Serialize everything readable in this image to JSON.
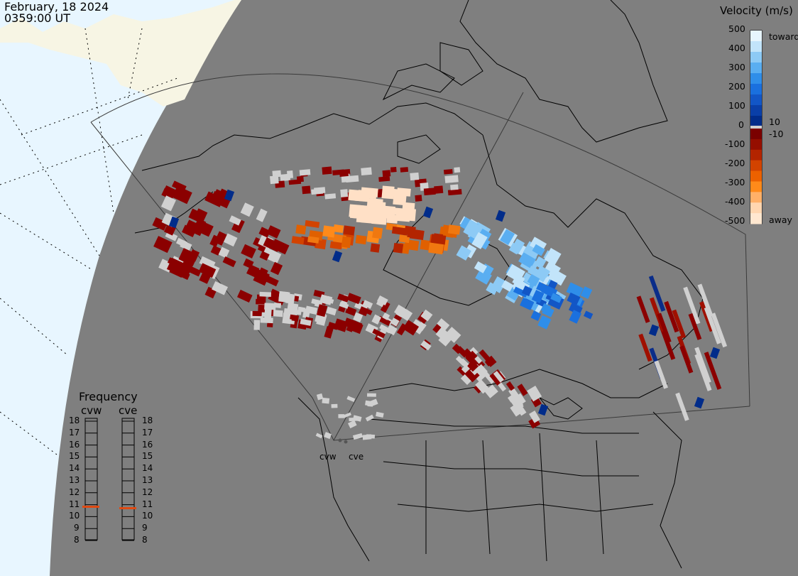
{
  "header": {
    "date": "February, 18 2024",
    "time": "0359:00 UT"
  },
  "legend": {
    "title": "Velocity (m/s)",
    "ticks": [
      "500",
      "400",
      "300",
      "200",
      "100",
      "0",
      "-100",
      "-200",
      "-300",
      "-400",
      "-500"
    ],
    "inner_ticks": [
      "10",
      "-10"
    ],
    "toward_label": "toward",
    "away_label": "away",
    "colors": {
      "toward": [
        "#012c8a",
        "#0a3fa8",
        "#1256c6",
        "#1a70de",
        "#2f8ee9",
        "#5aaef1",
        "#8dcaf5",
        "#c2e4fa",
        "#e7f5fd"
      ],
      "away": [
        "#7a0000",
        "#950e00",
        "#b32400",
        "#d24300",
        "#ec6100",
        "#ff8a1a",
        "#ffb068",
        "#ffd6b0",
        "#ffe7d0"
      ]
    }
  },
  "frequency": {
    "title": "Frequency",
    "radars": [
      {
        "name": "cvw",
        "value_mhz": 10.8
      },
      {
        "name": "cve",
        "value_mhz": 10.7
      }
    ],
    "scale": [
      "18",
      "17",
      "16",
      "15",
      "14",
      "13",
      "12",
      "11",
      "10",
      "9",
      "8"
    ]
  },
  "sites": [
    "cvw",
    "cve"
  ],
  "map_colors": {
    "night": "#7f7f7f",
    "ocean_day": "#e8f6ff",
    "land_day": "#f7f5e4",
    "ground_scatter": "#d0d0d0",
    "indicator": "#e04a12"
  }
}
